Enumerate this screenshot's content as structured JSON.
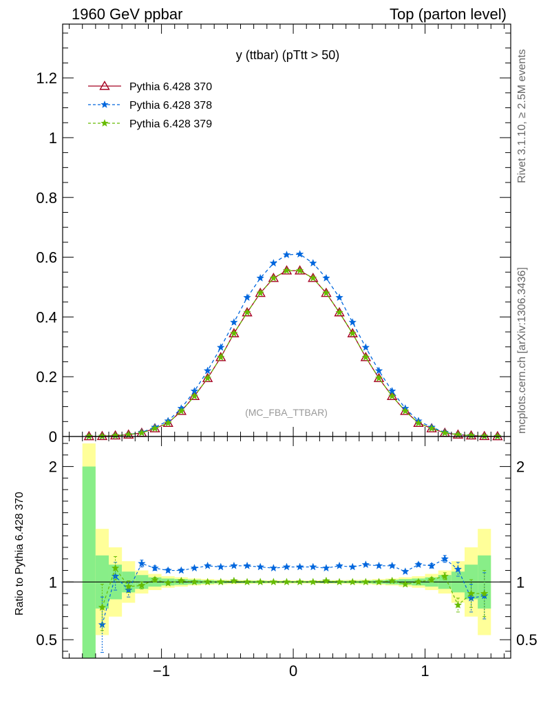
{
  "header": {
    "left": "1960 GeV ppbar",
    "right": "Top (parton level)"
  },
  "side_labels": {
    "top": "Rivet 3.1.10, ≥ 2.5M events",
    "bottom": "mcplots.cern.ch [arXiv:1306.3436]"
  },
  "chart_data": [
    {
      "type": "line",
      "title": "y (ttbar) (pTtt > 50)",
      "watermark": "(MC_FBA_TTBAR)",
      "xlim": [
        -1.75,
        1.65
      ],
      "ylim": [
        0,
        1.38
      ],
      "x_ticks": [
        -1,
        0,
        1
      ],
      "x_tick_labels": [
        "−1",
        "0",
        "1"
      ],
      "y_ticks": [
        0,
        0.2,
        0.4,
        0.6,
        0.8,
        1,
        1.2
      ],
      "y_tick_labels": [
        "0",
        "0.2",
        "0.4",
        "0.6",
        "0.8",
        "1",
        "1.2"
      ],
      "legend_position": "top-left",
      "x": [
        -1.55,
        -1.45,
        -1.35,
        -1.25,
        -1.15,
        -1.05,
        -0.95,
        -0.85,
        -0.75,
        -0.65,
        -0.55,
        -0.45,
        -0.35,
        -0.25,
        -0.15,
        -0.05,
        0.05,
        0.15,
        0.25,
        0.35,
        0.45,
        0.55,
        0.65,
        0.75,
        0.85,
        0.95,
        1.05,
        1.15,
        1.25,
        1.35,
        1.45,
        1.55
      ],
      "series": [
        {
          "name": "Pythia 6.428 370",
          "color": "#a50021",
          "marker": "triangle-open",
          "style": "solid",
          "values": [
            0.0005,
            0.001,
            0.003,
            0.006,
            0.012,
            0.027,
            0.045,
            0.085,
            0.135,
            0.195,
            0.265,
            0.345,
            0.415,
            0.48,
            0.53,
            0.555,
            0.555,
            0.53,
            0.48,
            0.415,
            0.345,
            0.265,
            0.195,
            0.135,
            0.085,
            0.045,
            0.027,
            0.012,
            0.006,
            0.003,
            0.001,
            0.0005
          ]
        },
        {
          "name": "Pythia 6.428 378",
          "color": "#0066dd",
          "marker": "star",
          "style": "dashed",
          "values": [
            0.0003,
            0.0008,
            0.003,
            0.006,
            0.014,
            0.031,
            0.052,
            0.094,
            0.152,
            0.22,
            0.298,
            0.382,
            0.465,
            0.53,
            0.58,
            0.608,
            0.61,
            0.58,
            0.53,
            0.465,
            0.382,
            0.298,
            0.22,
            0.152,
            0.094,
            0.052,
            0.031,
            0.014,
            0.006,
            0.003,
            0.0008,
            0.0003
          ]
        },
        {
          "name": "Pythia 6.428 379",
          "color": "#66bb00",
          "marker": "star",
          "style": "dashed",
          "values": [
            0.0004,
            0.0009,
            0.003,
            0.006,
            0.012,
            0.027,
            0.045,
            0.085,
            0.135,
            0.195,
            0.265,
            0.345,
            0.415,
            0.48,
            0.53,
            0.555,
            0.555,
            0.53,
            0.48,
            0.415,
            0.345,
            0.265,
            0.195,
            0.135,
            0.085,
            0.045,
            0.027,
            0.012,
            0.006,
            0.003,
            0.001,
            0.0004
          ]
        }
      ]
    },
    {
      "type": "line",
      "title": "",
      "ylabel": "Ratio to Pythia 6.428 370",
      "xlim": [
        -1.75,
        1.65
      ],
      "ylim": [
        0.34,
        2.26
      ],
      "x_ticks": [
        -1,
        0,
        1
      ],
      "x_tick_labels": [
        "−1",
        "0",
        "1"
      ],
      "y_ticks": [
        0.5,
        1,
        2
      ],
      "y_tick_labels": [
        "0.5",
        "1",
        "2"
      ],
      "reference_line": 1,
      "bands": {
        "x_edges": [
          -1.6,
          -1.5,
          -1.4,
          -1.3,
          -1.2,
          -1.1,
          -1.0,
          -0.9,
          -0.8,
          -0.7,
          -0.6,
          -0.5,
          -0.4,
          -0.3,
          -0.2,
          -0.1,
          0.0,
          0.1,
          0.2,
          0.3,
          0.4,
          0.5,
          0.6,
          0.7,
          0.8,
          0.9,
          1.0,
          1.1,
          1.2,
          1.3,
          1.4,
          1.5
        ],
        "green_halfwidth": [
          1.0,
          0.23,
          0.15,
          0.09,
          0.06,
          0.04,
          0.03,
          0.025,
          0.02,
          0.015,
          0.012,
          0.01,
          0.01,
          0.01,
          0.008,
          0.008,
          0.008,
          0.008,
          0.01,
          0.01,
          0.01,
          0.012,
          0.015,
          0.02,
          0.025,
          0.03,
          0.04,
          0.06,
          0.09,
          0.15,
          0.23
        ],
        "yellow_halfwidth": [
          1.2,
          0.46,
          0.3,
          0.18,
          0.1,
          0.07,
          0.05,
          0.04,
          0.03,
          0.025,
          0.02,
          0.018,
          0.016,
          0.015,
          0.014,
          0.014,
          0.014,
          0.014,
          0.015,
          0.016,
          0.018,
          0.02,
          0.025,
          0.03,
          0.04,
          0.05,
          0.07,
          0.1,
          0.18,
          0.3,
          0.46
        ]
      },
      "x": [
        -1.45,
        -1.35,
        -1.25,
        -1.15,
        -1.05,
        -0.95,
        -0.85,
        -0.75,
        -0.65,
        -0.55,
        -0.45,
        -0.35,
        -0.25,
        -0.15,
        -0.05,
        0.05,
        0.15,
        0.25,
        0.35,
        0.45,
        0.55,
        0.65,
        0.75,
        0.85,
        0.95,
        1.05,
        1.15,
        1.25,
        1.35,
        1.45
      ],
      "series": [
        {
          "name": "Pythia 6.428 378",
          "color": "#0066dd",
          "marker": "star",
          "style": "dashed",
          "values": [
            0.63,
            1.05,
            0.93,
            1.16,
            1.12,
            1.1,
            1.1,
            1.12,
            1.14,
            1.13,
            1.14,
            1.14,
            1.13,
            1.12,
            1.13,
            1.13,
            1.13,
            1.12,
            1.14,
            1.13,
            1.15,
            1.14,
            1.14,
            1.09,
            1.15,
            1.14,
            1.2,
            1.11,
            0.86,
            0.88
          ],
          "errors": [
            0.24,
            0.12,
            0.06,
            0.03,
            0.02,
            0.015,
            0.012,
            0.01,
            0.01,
            0.008,
            0.008,
            0.007,
            0.007,
            0.007,
            0.007,
            0.007,
            0.007,
            0.007,
            0.007,
            0.008,
            0.008,
            0.01,
            0.01,
            0.012,
            0.015,
            0.02,
            0.03,
            0.06,
            0.12,
            0.2
          ]
        },
        {
          "name": "Pythia 6.428 379",
          "color": "#66bb00",
          "marker": "star",
          "style": "dashed",
          "values": [
            0.78,
            1.12,
            0.96,
            0.97,
            1.02,
            0.99,
            1.01,
            1.0,
            1.0,
            1.0,
            1.01,
            1.0,
            1.0,
            1.0,
            1.0,
            1.0,
            1.0,
            1.01,
            1.0,
            1.0,
            1.0,
            1.0,
            1.01,
            0.98,
            1.0,
            1.02,
            1.05,
            0.8,
            0.9,
            0.9
          ],
          "errors": [
            0.2,
            0.1,
            0.05,
            0.03,
            0.02,
            0.015,
            0.012,
            0.01,
            0.01,
            0.008,
            0.008,
            0.007,
            0.007,
            0.007,
            0.007,
            0.007,
            0.007,
            0.007,
            0.007,
            0.008,
            0.008,
            0.01,
            0.01,
            0.012,
            0.015,
            0.02,
            0.03,
            0.06,
            0.12,
            0.2
          ]
        }
      ]
    }
  ]
}
